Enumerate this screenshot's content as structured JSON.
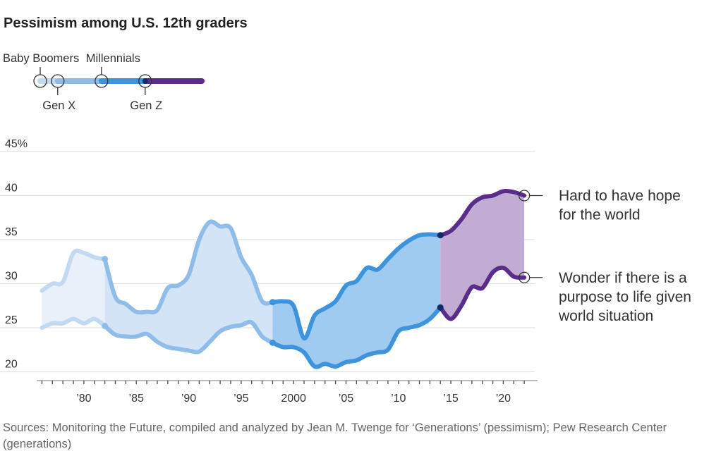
{
  "title": "Pessimism among U.S. 12th graders",
  "source": "Sources: Monitoring the Future, compiled and analyzed by Jean M. Twenge for ‘Generations’ (pessimism); Pew Research Center (generations)",
  "legend": {
    "generations": [
      {
        "name": "Baby Boomers",
        "start": 1976,
        "color": "#c2d9f2"
      },
      {
        "name": "Gen X",
        "start": 1978,
        "color": "#8fbde8"
      },
      {
        "name": "Millennials",
        "start": 1983,
        "color": "#3d94dc"
      },
      {
        "name": "Gen Z",
        "start": 1988,
        "color": "#5a2d8c"
      }
    ]
  },
  "colors": {
    "boomers_line": "#c2d9f2",
    "boomers_fill": "#e8f0fa",
    "genx_line": "#8fbde8",
    "genx_fill": "#d3e4f6",
    "millennials_line": "#3d94dc",
    "millennials_fill": "#9ecbef",
    "genz_line": "#5a2d8c",
    "genz_fill": "#c2acd3",
    "dot": "#102a6b"
  },
  "annotations": {
    "hope_lines": [
      "Hard to have hope",
      "for the world"
    ],
    "purpose_lines": [
      "Wonder if there is a",
      "purpose to life given",
      "world situation"
    ]
  },
  "chart_data": {
    "type": "area",
    "title": "Pessimism among U.S. 12th graders",
    "xlabel": "",
    "ylabel": "",
    "ylim": [
      19,
      45
    ],
    "xlim": [
      1975.5,
      2023
    ],
    "yticks": [
      20,
      25,
      30,
      35,
      40,
      45
    ],
    "ytick_labels": [
      "20",
      "25",
      "30",
      "35",
      "40",
      "45%"
    ],
    "xticks": [
      1980,
      1985,
      1990,
      1995,
      2000,
      2005,
      2010,
      2015,
      2020
    ],
    "xtick_labels": [
      "’80",
      "’85",
      "’90",
      "’95",
      "2000",
      "’05",
      "’10",
      "’15",
      "’20"
    ],
    "segments": [
      {
        "generation": "Baby Boomers",
        "start": 1976,
        "end": 1982
      },
      {
        "generation": "Gen X",
        "start": 1982,
        "end": 1998
      },
      {
        "generation": "Millennials",
        "start": 1998,
        "end": 2014
      },
      {
        "generation": "Gen Z",
        "start": 2014,
        "end": 2022
      }
    ],
    "series": [
      {
        "name": "Hard to have hope for the world",
        "x": [
          1976,
          1977,
          1978,
          1979,
          1980,
          1981,
          1982,
          1983,
          1984,
          1985,
          1986,
          1987,
          1988,
          1989,
          1990,
          1991,
          1992,
          1993,
          1994,
          1995,
          1996,
          1997,
          1998,
          1999,
          2000,
          2001,
          2002,
          2003,
          2004,
          2005,
          2006,
          2007,
          2008,
          2009,
          2010,
          2011,
          2012,
          2013,
          2014,
          2015,
          2016,
          2017,
          2018,
          2019,
          2020,
          2021,
          2022
        ],
        "values": [
          29.2,
          30,
          30.2,
          33.5,
          33.5,
          33,
          32.8,
          28.5,
          27.7,
          26.8,
          26.8,
          27,
          29.5,
          29.8,
          31,
          35,
          37,
          36.5,
          36.3,
          33,
          31,
          28,
          27.9,
          28,
          27.5,
          23.8,
          26.4,
          27.2,
          28,
          29.8,
          30.3,
          31.8,
          31.6,
          32.8,
          34,
          34.9,
          35.5,
          35.6,
          35.5,
          36,
          37.3,
          39,
          39.8,
          40,
          40.5,
          40.4,
          40
        ]
      },
      {
        "name": "Wonder if there is a purpose to life given world situation",
        "x": [
          1976,
          1977,
          1978,
          1979,
          1980,
          1981,
          1982,
          1983,
          1984,
          1985,
          1986,
          1987,
          1988,
          1989,
          1990,
          1991,
          1992,
          1993,
          1994,
          1995,
          1996,
          1997,
          1998,
          1999,
          2000,
          2001,
          2002,
          2003,
          2004,
          2005,
          2006,
          2007,
          2008,
          2009,
          2010,
          2011,
          2012,
          2013,
          2014,
          2015,
          2016,
          2017,
          2018,
          2019,
          2020,
          2021,
          2022
        ],
        "values": [
          25,
          25.5,
          25.5,
          26,
          25.5,
          26,
          25.2,
          24.2,
          24,
          24,
          24.3,
          23.4,
          22.8,
          22.6,
          22.4,
          22.3,
          23.4,
          24.6,
          25.1,
          25.3,
          25.6,
          24,
          23.3,
          22.8,
          22.8,
          22.2,
          20.6,
          20.9,
          20.6,
          21.1,
          21.3,
          21.9,
          22.2,
          22.5,
          24.6,
          25,
          25.3,
          26,
          27.3,
          26,
          27.5,
          29.6,
          29.5,
          31.3,
          31.8,
          30.8,
          30.7
        ]
      }
    ]
  }
}
